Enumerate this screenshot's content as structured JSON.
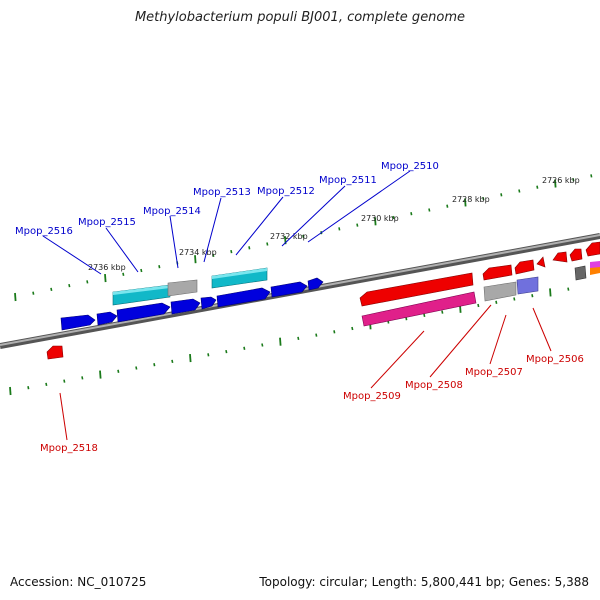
{
  "title": "Methylobacterium populi BJ001, complete genome",
  "accession": "Accession: NC_010725",
  "summary": "Topology: circular; Length: 5,800,441 bp; Genes: 5,388",
  "colors": {
    "forward_gene": "#0000dd",
    "reverse_gene": "#ee0000",
    "forward_label": "#0000cc",
    "reverse_label": "#cc0000",
    "cyan_feature": "#11b8c8",
    "magenta_feature": "#e0208a",
    "grey_feature": "#a8a8a8",
    "tick": "#1a7a1a",
    "backbone": "#777777"
  },
  "scale_labels": [
    "2726 kbp",
    "2728 kbp",
    "2730 kbp",
    "2732 kbp",
    "2734 kbp",
    "2736 kbp"
  ],
  "forward_genes": [
    "Mpop_2516",
    "Mpop_2515",
    "Mpop_2514",
    "Mpop_2513",
    "Mpop_2512",
    "Mpop_2511",
    "Mpop_2510"
  ],
  "reverse_genes": [
    "Mpop_2509",
    "Mpop_2508",
    "Mpop_2507",
    "Mpop_2506",
    "Mpop_2518"
  ]
}
